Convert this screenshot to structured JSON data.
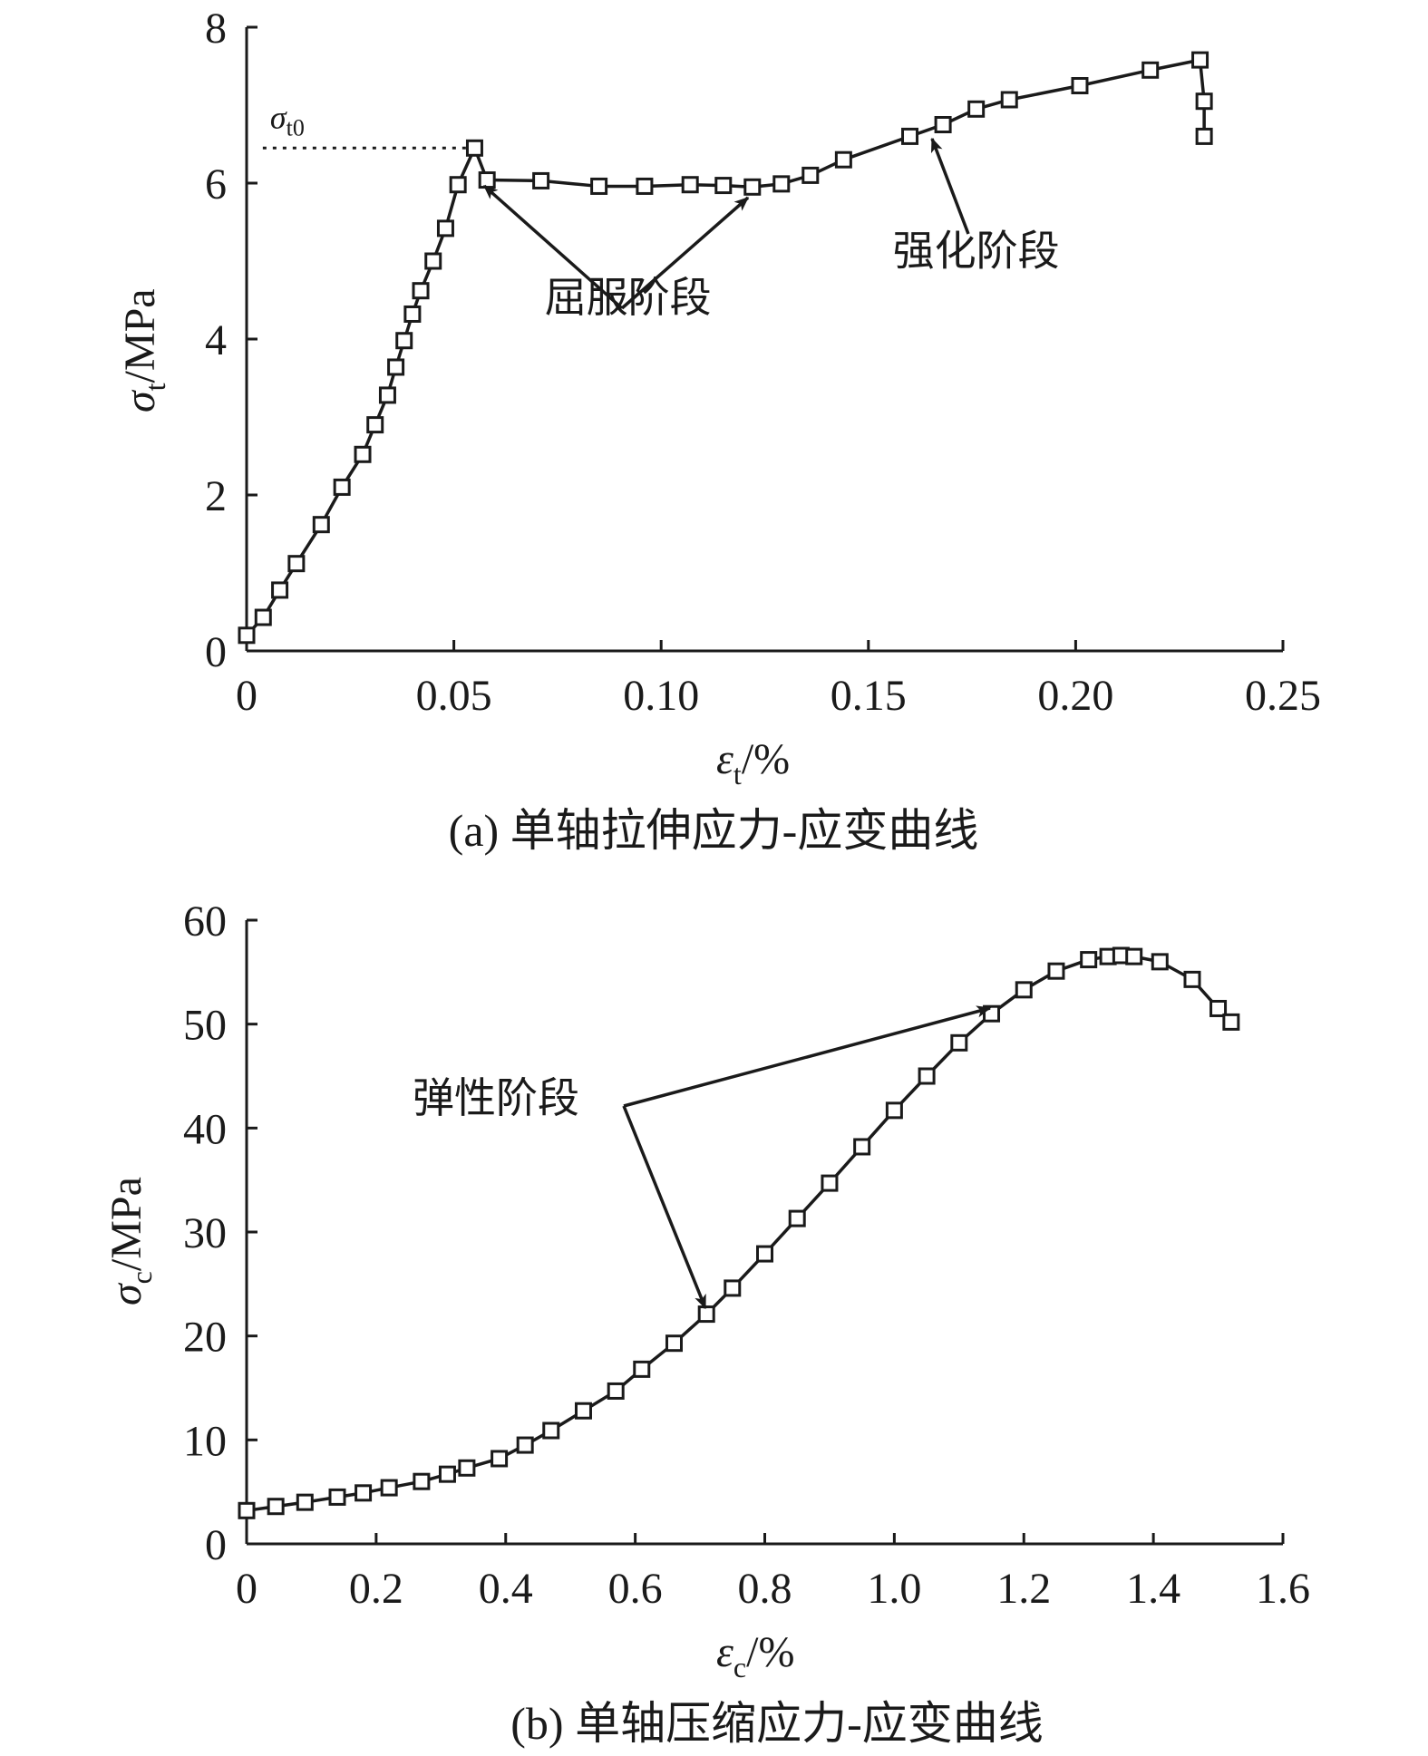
{
  "chart_data": [
    {
      "type": "line",
      "caption": "(a) 单轴拉伸应力-应变曲线",
      "xlabel": {
        "symbol": "ε",
        "sub": "t",
        "unit": "/%"
      },
      "ylabel": {
        "symbol": "σ",
        "sub": "t",
        "unit": "/MPa"
      },
      "xlim": [
        0,
        0.25
      ],
      "ylim": [
        0,
        8
      ],
      "x_ticks": [
        "0",
        "0.05",
        "0.10",
        "0.15",
        "0.20",
        "0.25"
      ],
      "x_tick_values": [
        0,
        0.05,
        0.1,
        0.15,
        0.2,
        0.25
      ],
      "y_ticks": [
        "0",
        "2",
        "4",
        "6",
        "8"
      ],
      "y_tick_values": [
        0,
        2,
        4,
        6,
        8
      ],
      "marker": "open-square",
      "series": [
        {
          "x": [
            0,
            0.004,
            0.008,
            0.012,
            0.018,
            0.023,
            0.028,
            0.031,
            0.034,
            0.036,
            0.038,
            0.04,
            0.042,
            0.045,
            0.048,
            0.051,
            0.055,
            0.058,
            0.071,
            0.085,
            0.096,
            0.107,
            0.115,
            0.122,
            0.129,
            0.136,
            0.144,
            0.16,
            0.168,
            0.176,
            0.184,
            0.201,
            0.218,
            0.23,
            0.231,
            0.231
          ],
          "y": [
            0.2,
            0.43,
            0.78,
            1.12,
            1.62,
            2.1,
            2.52,
            2.9,
            3.28,
            3.64,
            3.98,
            4.32,
            4.62,
            5.0,
            5.42,
            5.98,
            6.45,
            6.04,
            6.03,
            5.96,
            5.96,
            5.98,
            5.97,
            5.95,
            5.99,
            6.1,
            6.3,
            6.6,
            6.75,
            6.95,
            7.07,
            7.25,
            7.45,
            7.58,
            7.05,
            6.6
          ]
        }
      ],
      "reference_line": {
        "label_symbol": "σ",
        "label_sub": "t0",
        "y": 6.45,
        "x_from": 0.005,
        "x_to": 0.055
      },
      "annotations": [
        {
          "text": "屈服阶段",
          "text_at": [
            0.092,
            4.35
          ],
          "arrows_to": [
            [
              0.057,
              6.06
            ],
            [
              0.122,
              5.96
            ]
          ]
        },
        {
          "text": "强化阶段",
          "text_at": [
            0.176,
            4.95
          ],
          "arrows_to": [
            [
              0.165,
              6.65
            ]
          ]
        }
      ]
    },
    {
      "type": "line",
      "caption": "(b) 单轴压缩应力-应变曲线",
      "xlabel": {
        "symbol": "ε",
        "sub": "c",
        "unit": "/%"
      },
      "ylabel": {
        "symbol": "σ",
        "sub": "c",
        "unit": "/MPa"
      },
      "xlim": [
        0,
        1.6
      ],
      "ylim": [
        0,
        60
      ],
      "x_ticks": [
        "0",
        "0.2",
        "0.4",
        "0.6",
        "0.8",
        "1.0",
        "1.2",
        "1.4",
        "1.6"
      ],
      "x_tick_values": [
        0,
        0.2,
        0.4,
        0.6,
        0.8,
        1.0,
        1.2,
        1.4,
        1.6
      ],
      "y_ticks": [
        "0",
        "10",
        "20",
        "30",
        "40",
        "50",
        "60"
      ],
      "y_tick_values": [
        0,
        10,
        20,
        30,
        40,
        50,
        60
      ],
      "marker": "open-square",
      "series": [
        {
          "x": [
            0,
            0.045,
            0.09,
            0.14,
            0.18,
            0.22,
            0.27,
            0.31,
            0.34,
            0.39,
            0.43,
            0.47,
            0.52,
            0.57,
            0.61,
            0.66,
            0.71,
            0.75,
            0.8,
            0.85,
            0.9,
            0.95,
            1.0,
            1.05,
            1.1,
            1.15,
            1.2,
            1.25,
            1.3,
            1.33,
            1.35,
            1.37,
            1.41,
            1.46,
            1.5,
            1.52
          ],
          "y": [
            3.2,
            3.6,
            4.0,
            4.5,
            4.9,
            5.4,
            6.0,
            6.7,
            7.3,
            8.2,
            9.5,
            10.9,
            12.8,
            14.7,
            16.8,
            19.3,
            22.1,
            24.6,
            27.9,
            31.3,
            34.7,
            38.2,
            41.7,
            45.0,
            48.2,
            51.0,
            53.3,
            55.1,
            56.2,
            56.5,
            56.6,
            56.5,
            56.0,
            54.3,
            51.5,
            50.2
          ]
        }
      ],
      "annotations": [
        {
          "text": "弹性阶段",
          "text_at": [
            0.385,
            41.5
          ],
          "arrows_to": [
            [
              1.15,
              51.5
            ],
            [
              0.71,
              22.3
            ]
          ]
        }
      ]
    }
  ]
}
